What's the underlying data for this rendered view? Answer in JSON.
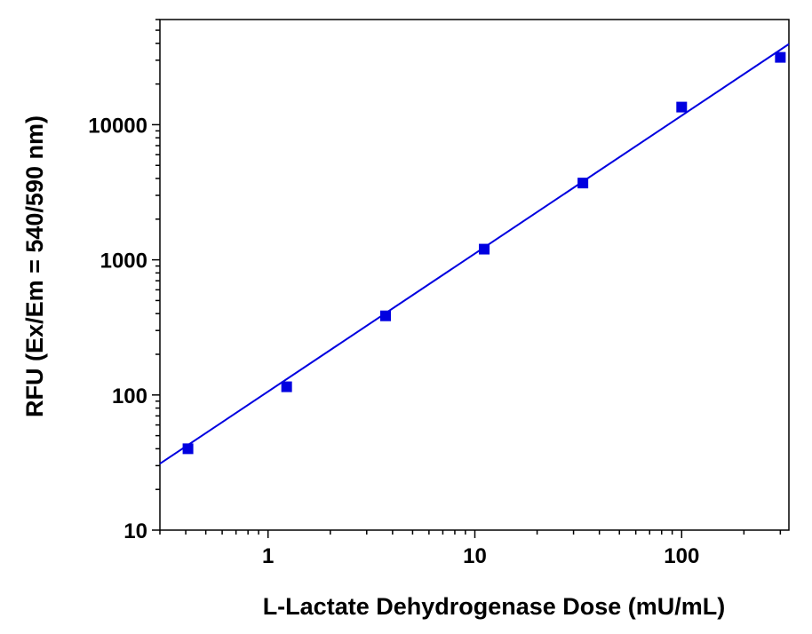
{
  "chart_data": {
    "type": "scatter",
    "title": "",
    "xlabel": "L-Lactate Dehydrogenase Dose (mU/mL)",
    "ylabel": "RFU (Ex/Em = 540/590 nm)",
    "x_scale": "log",
    "y_scale": "log",
    "xlim": [
      0.3,
      330
    ],
    "ylim": [
      10,
      60000
    ],
    "x_major_ticks": [
      1,
      10,
      100
    ],
    "x_tick_labels": [
      "1",
      "10",
      "100"
    ],
    "y_major_ticks": [
      10,
      100,
      1000,
      10000
    ],
    "y_tick_labels": [
      "10",
      "100",
      "1000",
      "10000"
    ],
    "grid": false,
    "legend": "none",
    "series": [
      {
        "x": [
          0.41,
          1.23,
          3.7,
          11.1,
          33.3,
          100,
          300
        ],
        "y": [
          40,
          115,
          385,
          1200,
          3700,
          13500,
          31500
        ],
        "marker": "square",
        "color": "#0000e0"
      }
    ],
    "fit_line": {
      "x": [
        0.3,
        330
      ],
      "y": [
        31,
        39500
      ],
      "color": "#0000e0"
    }
  }
}
